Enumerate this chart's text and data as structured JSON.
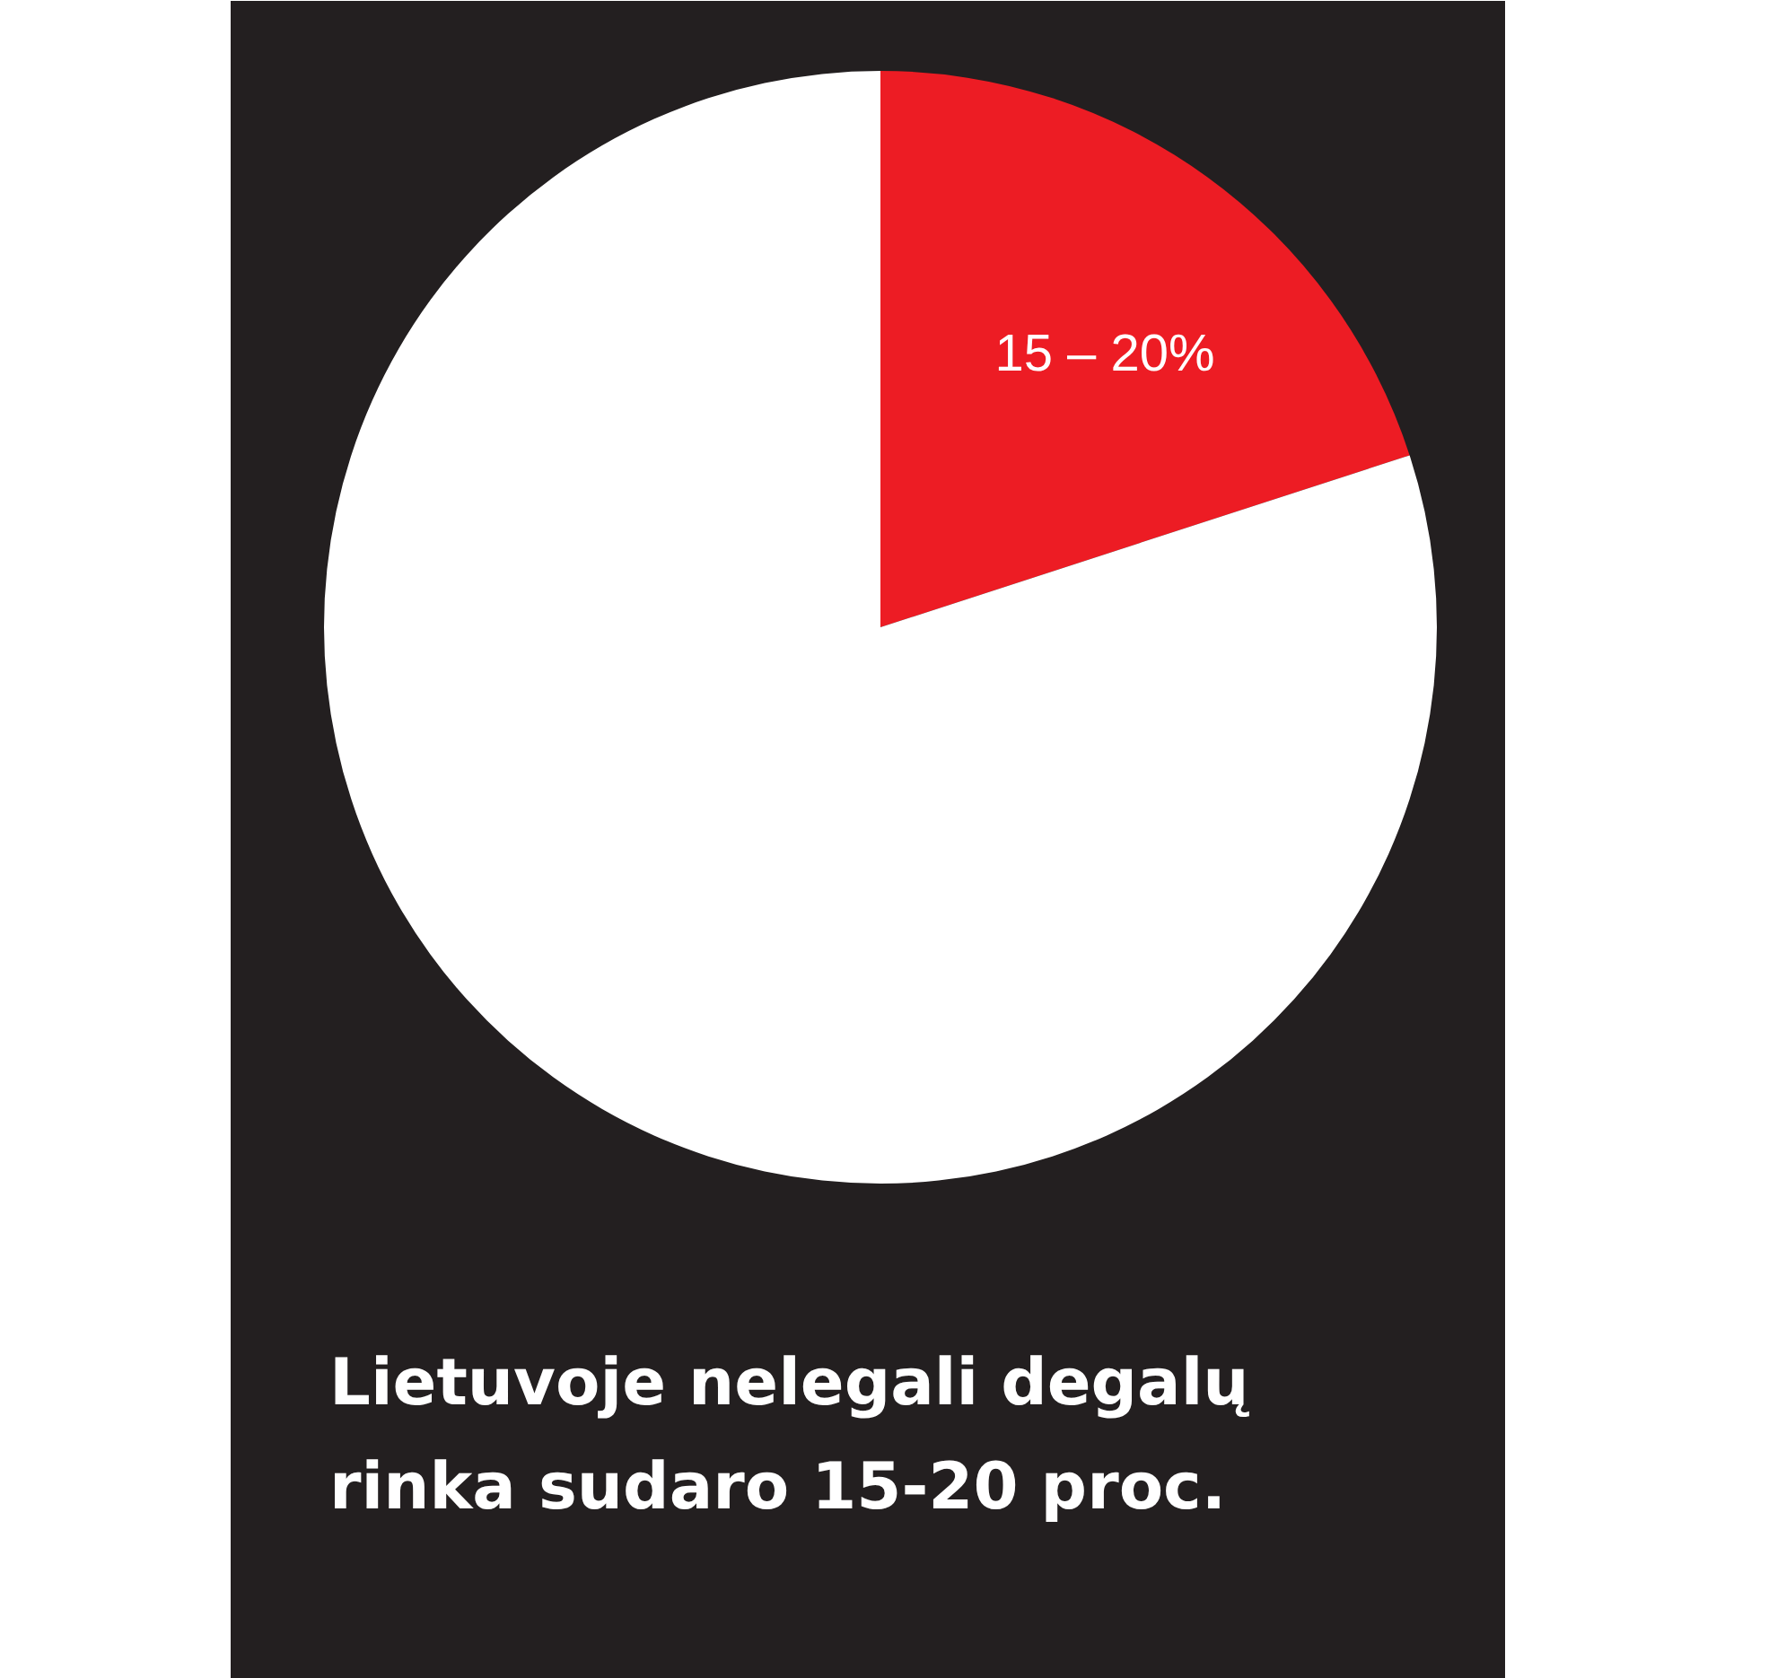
{
  "chart_data": {
    "type": "pie",
    "title": "Lietuvoje nelegali degalų rinka sudaro 15-20 proc.",
    "categories": [
      null,
      null
    ],
    "values": [
      20,
      80
    ],
    "colors": [
      "#ed1c24",
      "#ffffff"
    ],
    "annotations": [
      "15 – 20%"
    ]
  }
}
